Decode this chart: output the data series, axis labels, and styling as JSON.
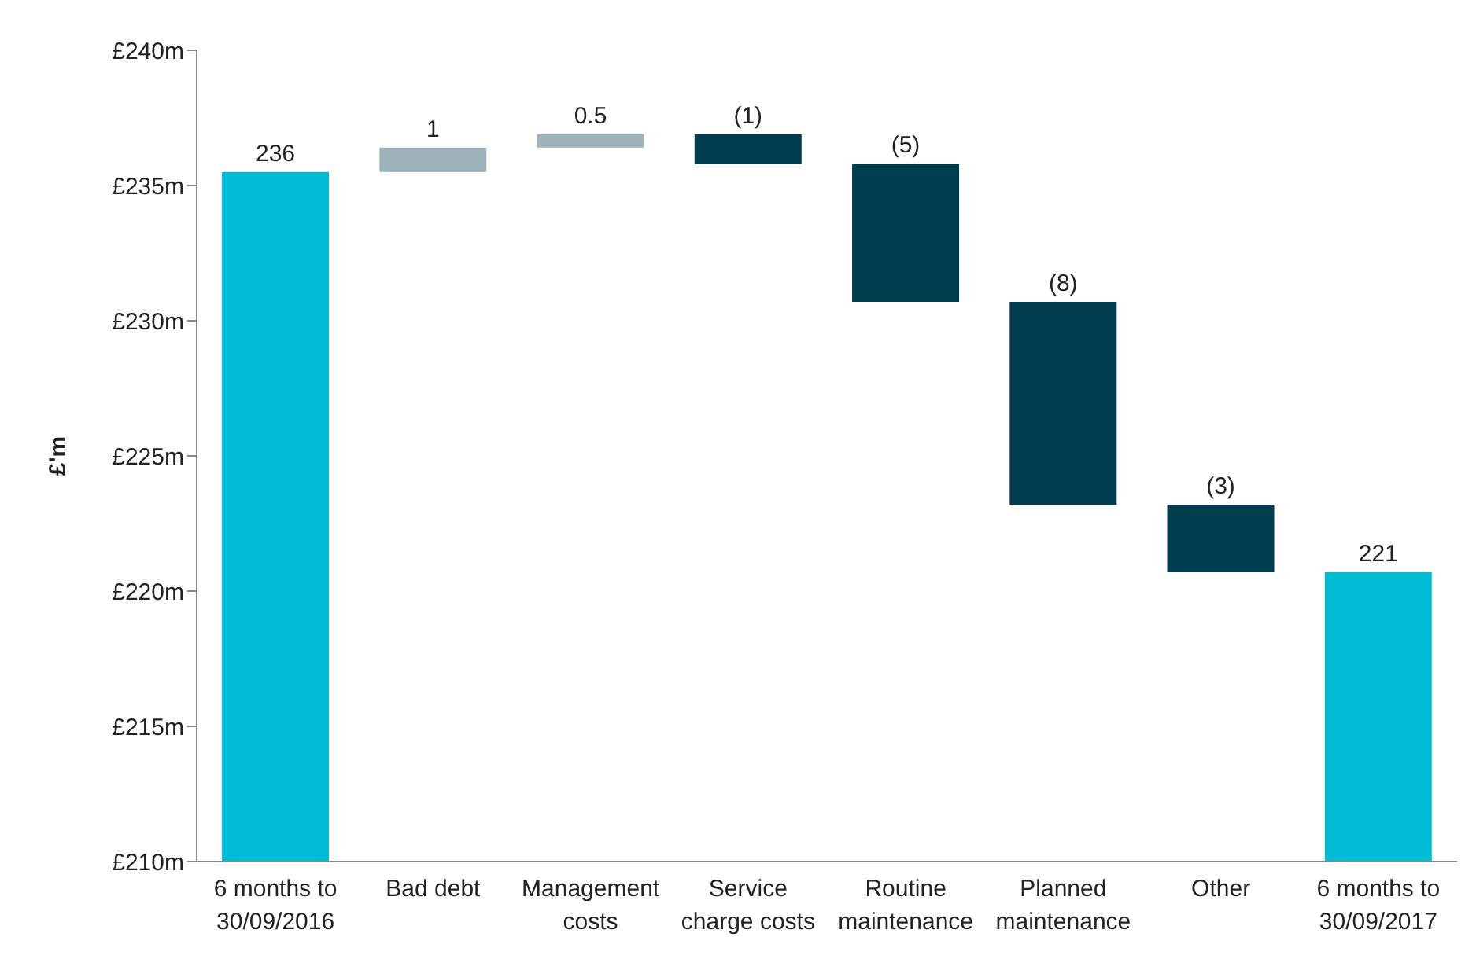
{
  "chart_data": {
    "type": "bar",
    "ylabel": "£'m",
    "categories": [
      "6 months to\n30/09/2016",
      "Bad debt",
      "Management\ncosts",
      "Service\ncharge costs",
      "Routine\nmaintenance",
      "Planned\nmaintenance",
      "Other",
      "6 months to\n30/09/2017"
    ],
    "base": [
      210,
      235.5,
      236.4,
      236.9,
      235.8,
      230.7,
      223.2,
      210
    ],
    "values": [
      25.5,
      0.9,
      0.5,
      -1.1,
      -5.1,
      -7.5,
      -2.5,
      10.7
    ],
    "colors": [
      "#00bcd5",
      "#9fb3bb",
      "#9fb3bb",
      "#003d4f",
      "#003d4f",
      "#003d4f",
      "#003d4f",
      "#00bcd5"
    ],
    "value_labels": [
      "236",
      "1",
      "0.5",
      "(1)",
      "(5)",
      "(8)",
      "(3)",
      "221"
    ],
    "ylim": [
      210,
      240
    ],
    "yticks": [
      {
        "value": 210,
        "label": "£210m"
      },
      {
        "value": 215,
        "label": "£215m"
      },
      {
        "value": 220,
        "label": "£220m"
      },
      {
        "value": 225,
        "label": "£225m"
      },
      {
        "value": 230,
        "label": "£230m"
      },
      {
        "value": 235,
        "label": "£235m"
      },
      {
        "value": 240,
        "label": "£240m"
      }
    ],
    "grid": false,
    "legend": false
  }
}
